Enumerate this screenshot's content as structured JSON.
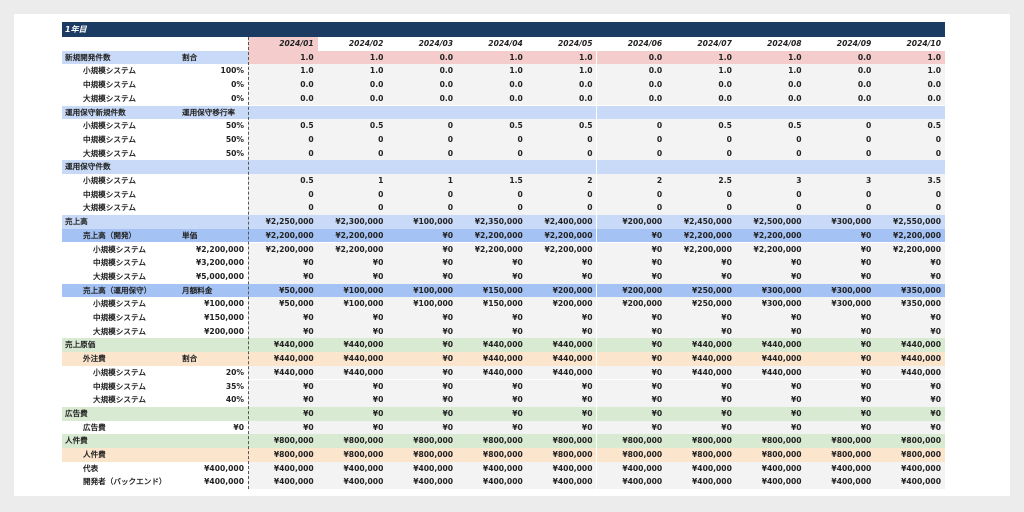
{
  "title": "1年目",
  "table": {
    "header": [
      "2024/01",
      "2024/02",
      "2024/03",
      "2024/04",
      "2024/05",
      "2024/06",
      "2024/07",
      "2024/08",
      "2024/09",
      "2024/10"
    ],
    "rows": [
      {
        "label": "新規開発件数",
        "sub": "割合",
        "values": [
          "1.0",
          "1.0",
          "0.0",
          "1.0",
          "1.0",
          "0.0",
          "1.0",
          "1.0",
          "0.0",
          "1.0"
        ]
      },
      {
        "label": "小規模システム",
        "sub": "100%",
        "values": [
          "1.0",
          "1.0",
          "0.0",
          "1.0",
          "1.0",
          "0.0",
          "1.0",
          "1.0",
          "0.0",
          "1.0"
        ]
      },
      {
        "label": "中規模システム",
        "sub": "0%",
        "values": [
          "0.0",
          "0.0",
          "0.0",
          "0.0",
          "0.0",
          "0.0",
          "0.0",
          "0.0",
          "0.0",
          "0.0"
        ]
      },
      {
        "label": "大規模システム",
        "sub": "0%",
        "values": [
          "0.0",
          "0.0",
          "0.0",
          "0.0",
          "0.0",
          "0.0",
          "0.0",
          "0.0",
          "0.0",
          "0.0"
        ]
      },
      {
        "label": "運用保守新規件数",
        "sub": "運用保守移行率"
      },
      {
        "label": "小規模システム",
        "sub": "50%",
        "values": [
          "0.5",
          "0.5",
          "0",
          "0.5",
          "0.5",
          "0",
          "0.5",
          "0.5",
          "0",
          "0.5"
        ]
      },
      {
        "label": "中規模システム",
        "sub": "50%",
        "values": [
          "0",
          "0",
          "0",
          "0",
          "0",
          "0",
          "0",
          "0",
          "0",
          "0"
        ]
      },
      {
        "label": "大規模システム",
        "sub": "50%",
        "values": [
          "0",
          "0",
          "0",
          "0",
          "0",
          "0",
          "0",
          "0",
          "0",
          "0"
        ]
      },
      {
        "label": "運用保守件数"
      },
      {
        "label": "小規模システム",
        "values": [
          "0.5",
          "1",
          "1",
          "1.5",
          "2",
          "2",
          "2.5",
          "3",
          "3",
          "3.5"
        ]
      },
      {
        "label": "中規模システム",
        "values": [
          "0",
          "0",
          "0",
          "0",
          "0",
          "0",
          "0",
          "0",
          "0",
          "0"
        ]
      },
      {
        "label": "大規模システム",
        "values": [
          "0",
          "0",
          "0",
          "0",
          "0",
          "0",
          "0",
          "0",
          "0",
          "0"
        ]
      },
      {
        "label": "売上高",
        "values": [
          "¥2,250,000",
          "¥2,300,000",
          "¥100,000",
          "¥2,350,000",
          "¥2,400,000",
          "¥200,000",
          "¥2,450,000",
          "¥2,500,000",
          "¥300,000",
          "¥2,550,000"
        ]
      },
      {
        "label": "売上高（開発）",
        "sub": "単価",
        "values": [
          "¥2,200,000",
          "¥2,200,000",
          "¥0",
          "¥2,200,000",
          "¥2,200,000",
          "¥0",
          "¥2,200,000",
          "¥2,200,000",
          "¥0",
          "¥2,200,000"
        ]
      },
      {
        "label": "小規模システム",
        "sub": "¥2,200,000",
        "values": [
          "¥2,200,000",
          "¥2,200,000",
          "¥0",
          "¥2,200,000",
          "¥2,200,000",
          "¥0",
          "¥2,200,000",
          "¥2,200,000",
          "¥0",
          "¥2,200,000"
        ]
      },
      {
        "label": "中規模システム",
        "sub": "¥3,200,000",
        "values": [
          "¥0",
          "¥0",
          "¥0",
          "¥0",
          "¥0",
          "¥0",
          "¥0",
          "¥0",
          "¥0",
          "¥0"
        ]
      },
      {
        "label": "大規模システム",
        "sub": "¥5,000,000",
        "values": [
          "¥0",
          "¥0",
          "¥0",
          "¥0",
          "¥0",
          "¥0",
          "¥0",
          "¥0",
          "¥0",
          "¥0"
        ]
      },
      {
        "label": "売上高（運用保守）",
        "sub": "月額料金",
        "values": [
          "¥50,000",
          "¥100,000",
          "¥100,000",
          "¥150,000",
          "¥200,000",
          "¥200,000",
          "¥250,000",
          "¥300,000",
          "¥300,000",
          "¥350,000"
        ]
      },
      {
        "label": "小規模システム",
        "sub": "¥100,000",
        "values": [
          "¥50,000",
          "¥100,000",
          "¥100,000",
          "¥150,000",
          "¥200,000",
          "¥200,000",
          "¥250,000",
          "¥300,000",
          "¥300,000",
          "¥350,000"
        ]
      },
      {
        "label": "中規模システム",
        "sub": "¥150,000",
        "values": [
          "¥0",
          "¥0",
          "¥0",
          "¥0",
          "¥0",
          "¥0",
          "¥0",
          "¥0",
          "¥0",
          "¥0"
        ]
      },
      {
        "label": "大規模システム",
        "sub": "¥200,000",
        "values": [
          "¥0",
          "¥0",
          "¥0",
          "¥0",
          "¥0",
          "¥0",
          "¥0",
          "¥0",
          "¥0",
          "¥0"
        ]
      },
      {
        "label": "売上原価",
        "values": [
          "¥440,000",
          "¥440,000",
          "¥0",
          "¥440,000",
          "¥440,000",
          "¥0",
          "¥440,000",
          "¥440,000",
          "¥0",
          "¥440,000"
        ]
      },
      {
        "label": "外注費",
        "sub": "割合",
        "values": [
          "¥440,000",
          "¥440,000",
          "¥0",
          "¥440,000",
          "¥440,000",
          "¥0",
          "¥440,000",
          "¥440,000",
          "¥0",
          "¥440,000"
        ]
      },
      {
        "label": "小規模システム",
        "sub": "20%",
        "values": [
          "¥440,000",
          "¥440,000",
          "¥0",
          "¥440,000",
          "¥440,000",
          "¥0",
          "¥440,000",
          "¥440,000",
          "¥0",
          "¥440,000"
        ]
      },
      {
        "label": "中規模システム",
        "sub": "35%",
        "values": [
          "¥0",
          "¥0",
          "¥0",
          "¥0",
          "¥0",
          "¥0",
          "¥0",
          "¥0",
          "¥0",
          "¥0"
        ]
      },
      {
        "label": "大規模システム",
        "sub": "40%",
        "values": [
          "¥0",
          "¥0",
          "¥0",
          "¥0",
          "¥0",
          "¥0",
          "¥0",
          "¥0",
          "¥0",
          "¥0"
        ]
      },
      {
        "label": "広告費",
        "values": [
          "¥0",
          "¥0",
          "¥0",
          "¥0",
          "¥0",
          "¥0",
          "¥0",
          "¥0",
          "¥0",
          "¥0"
        ]
      },
      {
        "label": "広告費",
        "sub": "¥0",
        "values": [
          "¥0",
          "¥0",
          "¥0",
          "¥0",
          "¥0",
          "¥0",
          "¥0",
          "¥0",
          "¥0",
          "¥0"
        ]
      },
      {
        "label": "人件費",
        "values": [
          "¥800,000",
          "¥800,000",
          "¥800,000",
          "¥800,000",
          "¥800,000",
          "¥800,000",
          "¥800,000",
          "¥800,000",
          "¥800,000",
          "¥800,000"
        ]
      },
      {
        "label": "人件費",
        "values": [
          "¥800,000",
          "¥800,000",
          "¥800,000",
          "¥800,000",
          "¥800,000",
          "¥800,000",
          "¥800,000",
          "¥800,000",
          "¥800,000",
          "¥800,000"
        ]
      },
      {
        "label": "代表",
        "sub": "¥400,000",
        "values": [
          "¥400,000",
          "¥400,000",
          "¥400,000",
          "¥400,000",
          "¥400,000",
          "¥400,000",
          "¥400,000",
          "¥400,000",
          "¥400,000",
          "¥400,000"
        ]
      },
      {
        "label": "開発者（バックエンド）",
        "sub": "¥400,000",
        "values": [
          "¥400,000",
          "¥400,000",
          "¥400,000",
          "¥400,000",
          "¥400,000",
          "¥400,000",
          "¥400,000",
          "¥400,000",
          "¥400,000",
          "¥400,000"
        ]
      }
    ]
  }
}
